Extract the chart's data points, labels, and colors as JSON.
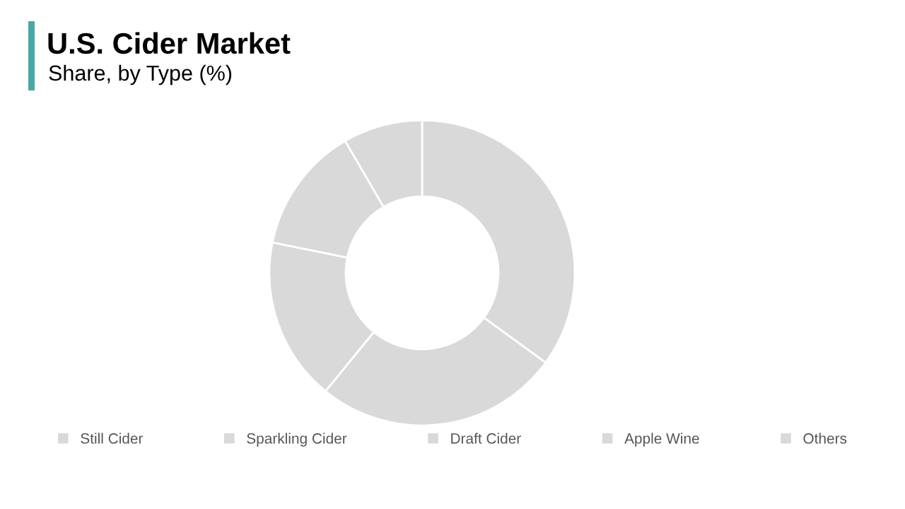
{
  "chart_data": {
    "type": "donut",
    "title": "U.S. Cider Market",
    "subtitle": "Share, by Type (%)",
    "categories": [
      "Still Cider",
      "Sparkling Cider",
      "Draft Cider",
      "Apple Wine",
      "Others"
    ],
    "values": [
      35,
      25.9,
      17.3,
      13.4,
      8.4
    ],
    "colors": [
      "#d9d9d9",
      "#d9d9d9",
      "#d9d9d9",
      "#d9d9d9",
      "#d9d9d9"
    ],
    "legend": "bottom"
  }
}
